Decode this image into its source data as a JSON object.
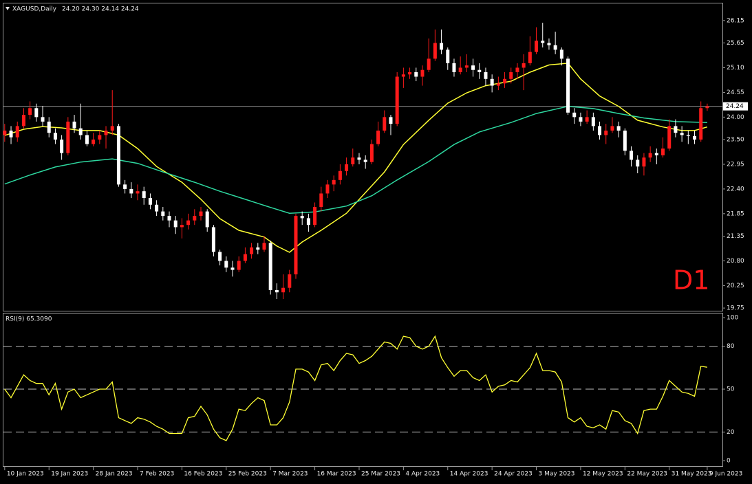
{
  "chart_data": [
    {
      "type": "candlestick",
      "title": "XAGUSD,Daily",
      "ohlc_label": "24.20 24.30 24.14 24.24",
      "up_color": "#ff1a1a",
      "down_color": "#ffffff",
      "candles": [
        [
          23.6,
          23.85,
          23.45,
          23.7
        ],
        [
          23.7,
          23.8,
          23.4,
          23.55
        ],
        [
          23.55,
          23.9,
          23.45,
          23.8
        ],
        [
          23.8,
          24.2,
          23.75,
          24.05
        ],
        [
          24.05,
          24.35,
          23.95,
          24.2
        ],
        [
          24.2,
          24.3,
          23.9,
          24.0
        ],
        [
          24.0,
          24.25,
          23.8,
          23.9
        ],
        [
          23.9,
          24.0,
          23.55,
          23.65
        ],
        [
          23.65,
          23.75,
          23.4,
          23.5
        ],
        [
          23.5,
          23.6,
          23.05,
          23.2
        ],
        [
          23.2,
          24.0,
          23.15,
          23.9
        ],
        [
          23.9,
          24.05,
          23.65,
          23.75
        ],
        [
          23.75,
          24.3,
          23.5,
          23.6
        ],
        [
          23.6,
          23.7,
          23.35,
          23.4
        ],
        [
          23.4,
          23.65,
          23.35,
          23.5
        ],
        [
          23.5,
          23.7,
          23.4,
          23.6
        ],
        [
          23.6,
          23.8,
          23.3,
          23.7
        ],
        [
          23.7,
          24.6,
          23.6,
          23.8
        ],
        [
          23.8,
          23.85,
          22.45,
          22.5
        ],
        [
          22.5,
          22.6,
          22.3,
          22.4
        ],
        [
          22.4,
          22.55,
          22.2,
          22.3
        ],
        [
          22.3,
          22.5,
          22.15,
          22.35
        ],
        [
          22.35,
          22.45,
          22.05,
          22.2
        ],
        [
          22.2,
          22.3,
          21.95,
          22.05
        ],
        [
          22.05,
          22.15,
          21.8,
          21.9
        ],
        [
          21.9,
          22.0,
          21.7,
          21.8
        ],
        [
          21.8,
          21.9,
          21.55,
          21.7
        ],
        [
          21.7,
          21.8,
          21.4,
          21.55
        ],
        [
          21.55,
          21.75,
          21.3,
          21.6
        ],
        [
          21.6,
          21.85,
          21.5,
          21.7
        ],
        [
          21.7,
          21.95,
          21.6,
          21.8
        ],
        [
          21.8,
          22.0,
          21.7,
          21.9
        ],
        [
          21.9,
          21.95,
          21.45,
          21.55
        ],
        [
          21.55,
          21.6,
          20.9,
          21.0
        ],
        [
          21.0,
          21.05,
          20.7,
          20.8
        ],
        [
          20.8,
          20.9,
          20.55,
          20.65
        ],
        [
          20.65,
          20.8,
          20.45,
          20.6
        ],
        [
          20.6,
          20.9,
          20.55,
          20.8
        ],
        [
          20.8,
          21.1,
          20.75,
          20.95
        ],
        [
          20.95,
          21.2,
          20.85,
          21.1
        ],
        [
          21.1,
          21.2,
          20.95,
          21.05
        ],
        [
          21.05,
          21.35,
          21.0,
          21.2
        ],
        [
          21.2,
          21.25,
          20.05,
          20.15
        ],
        [
          20.15,
          20.3,
          19.95,
          20.1
        ],
        [
          20.1,
          20.5,
          19.95,
          20.2
        ],
        [
          20.2,
          20.6,
          20.1,
          20.5
        ],
        [
          20.5,
          21.85,
          20.4,
          21.8
        ],
        [
          21.8,
          21.9,
          21.6,
          21.75
        ],
        [
          21.75,
          21.85,
          21.45,
          21.6
        ],
        [
          21.6,
          22.1,
          21.55,
          22.0
        ],
        [
          22.0,
          22.45,
          21.9,
          22.3
        ],
        [
          22.3,
          22.6,
          22.2,
          22.5
        ],
        [
          22.5,
          22.7,
          22.35,
          22.6
        ],
        [
          22.6,
          22.95,
          22.5,
          22.8
        ],
        [
          22.8,
          23.1,
          22.7,
          22.95
        ],
        [
          22.95,
          23.3,
          22.9,
          23.1
        ],
        [
          23.1,
          23.2,
          22.95,
          23.05
        ],
        [
          23.05,
          23.15,
          22.85,
          23.0
        ],
        [
          23.0,
          23.5,
          22.95,
          23.4
        ],
        [
          23.4,
          23.9,
          23.35,
          23.7
        ],
        [
          23.7,
          24.15,
          23.65,
          24.0
        ],
        [
          24.0,
          24.05,
          23.6,
          23.85
        ],
        [
          23.85,
          25.0,
          23.8,
          24.9
        ],
        [
          24.9,
          25.1,
          24.65,
          24.95
        ],
        [
          24.95,
          25.1,
          24.85,
          25.0
        ],
        [
          25.0,
          25.1,
          24.8,
          24.9
        ],
        [
          24.9,
          25.15,
          24.7,
          25.05
        ],
        [
          25.05,
          25.75,
          25.0,
          25.3
        ],
        [
          25.3,
          25.95,
          25.25,
          25.65
        ],
        [
          25.65,
          25.95,
          25.4,
          25.5
        ],
        [
          25.5,
          25.55,
          25.05,
          25.2
        ],
        [
          25.2,
          25.3,
          24.9,
          25.0
        ],
        [
          25.0,
          25.35,
          24.95,
          25.1
        ],
        [
          25.1,
          25.4,
          25.0,
          25.15
        ],
        [
          25.15,
          25.3,
          24.9,
          25.05
        ],
        [
          25.05,
          25.2,
          24.85,
          25.0
        ],
        [
          25.0,
          25.1,
          24.7,
          24.85
        ],
        [
          24.85,
          24.95,
          24.55,
          24.7
        ],
        [
          24.7,
          24.9,
          24.6,
          24.75
        ],
        [
          24.75,
          25.0,
          24.65,
          24.85
        ],
        [
          24.85,
          25.1,
          24.75,
          25.0
        ],
        [
          25.0,
          25.2,
          24.85,
          25.1
        ],
        [
          25.1,
          25.4,
          24.6,
          25.2
        ],
        [
          25.2,
          25.8,
          25.15,
          25.45
        ],
        [
          25.45,
          26.0,
          25.4,
          25.7
        ],
        [
          25.7,
          26.1,
          25.55,
          25.65
        ],
        [
          25.65,
          25.75,
          25.5,
          25.6
        ],
        [
          25.6,
          25.9,
          25.4,
          25.5
        ],
        [
          25.5,
          25.55,
          25.15,
          25.3
        ],
        [
          25.3,
          25.35,
          24.05,
          24.1
        ],
        [
          24.1,
          24.2,
          23.85,
          24.0
        ],
        [
          24.0,
          24.1,
          23.8,
          23.9
        ],
        [
          23.9,
          24.15,
          23.85,
          24.0
        ],
        [
          24.0,
          24.1,
          23.7,
          23.8
        ],
        [
          23.8,
          23.9,
          23.5,
          23.6
        ],
        [
          23.6,
          23.85,
          23.4,
          23.7
        ],
        [
          23.7,
          24.0,
          23.65,
          23.8
        ],
        [
          23.8,
          23.9,
          23.55,
          23.7
        ],
        [
          23.7,
          23.75,
          23.15,
          23.25
        ],
        [
          23.25,
          23.35,
          22.9,
          23.05
        ],
        [
          23.05,
          23.15,
          22.75,
          22.9
        ],
        [
          22.9,
          23.2,
          22.7,
          23.1
        ],
        [
          23.1,
          23.35,
          23.0,
          23.2
        ],
        [
          23.2,
          23.3,
          22.95,
          23.15
        ],
        [
          23.15,
          23.55,
          23.1,
          23.3
        ],
        [
          23.3,
          23.95,
          23.25,
          23.8
        ],
        [
          23.8,
          23.95,
          23.55,
          23.65
        ],
        [
          23.65,
          23.8,
          23.45,
          23.6
        ],
        [
          23.6,
          23.7,
          23.4,
          23.58
        ],
        [
          23.58,
          23.7,
          23.4,
          23.5
        ],
        [
          23.5,
          24.35,
          23.45,
          24.2
        ],
        [
          24.2,
          24.3,
          24.14,
          24.24
        ]
      ],
      "series": [
        {
          "color": "#ffff33",
          "x": [
            0,
            3,
            6,
            9,
            12,
            15,
            18,
            21,
            24,
            28,
            31,
            34,
            37,
            41,
            43,
            45,
            47,
            50,
            54,
            57,
            60,
            63,
            67,
            70,
            73,
            76,
            80,
            83,
            86,
            89,
            91,
            94,
            97,
            100,
            104,
            107,
            109,
            111
          ],
          "values": [
            23.59,
            23.73,
            23.79,
            23.76,
            23.7,
            23.7,
            23.6,
            23.3,
            22.9,
            22.55,
            22.17,
            21.74,
            21.48,
            21.33,
            21.13,
            20.99,
            21.22,
            21.48,
            21.86,
            22.32,
            22.78,
            23.39,
            23.93,
            24.31,
            24.54,
            24.7,
            24.8,
            25.0,
            25.16,
            25.2,
            24.85,
            24.47,
            24.24,
            23.93,
            23.78,
            23.7,
            23.7,
            23.78
          ]
        },
        {
          "color": "#2ed8a0",
          "x": [
            0,
            4,
            8,
            12,
            17,
            21,
            25,
            30,
            34,
            38,
            42,
            45,
            49,
            54,
            58,
            62,
            67,
            71,
            75,
            80,
            84,
            89,
            93,
            97,
            101,
            106,
            111
          ],
          "values": [
            22.51,
            22.71,
            22.89,
            23.0,
            23.07,
            22.97,
            22.78,
            22.55,
            22.35,
            22.17,
            21.99,
            21.86,
            21.89,
            22.02,
            22.25,
            22.6,
            23.01,
            23.39,
            23.67,
            23.88,
            24.08,
            24.24,
            24.19,
            24.08,
            23.98,
            23.9,
            23.88
          ]
        }
      ],
      "xlim": [
        -0.2,
        113.4
      ],
      "xticks": [
        {
          "value": 0,
          "label": "10 Jan 2023"
        },
        {
          "value": 7,
          "label": "19 Jan 2023"
        },
        {
          "value": 14,
          "label": "28 Jan 2023"
        },
        {
          "value": 21,
          "label": "7 Feb 2023"
        },
        {
          "value": 28,
          "label": "16 Feb 2023"
        },
        {
          "value": 35,
          "label": "25 Feb 2023"
        },
        {
          "value": 42,
          "label": "7 Mar 2023"
        },
        {
          "value": 49,
          "label": "16 Mar 2023"
        },
        {
          "value": 56,
          "label": "25 Mar 2023"
        },
        {
          "value": 63,
          "label": "4 Apr 2023"
        },
        {
          "value": 70,
          "label": "14 Apr 2023"
        },
        {
          "value": 77,
          "label": "24 Apr 2023"
        },
        {
          "value": 84,
          "label": "3 May 2023"
        },
        {
          "value": 91,
          "label": "12 May 2023"
        },
        {
          "value": 98,
          "label": "22 May 2023"
        },
        {
          "value": 105,
          "label": "31 May 2023"
        },
        {
          "value": 111,
          "label": "9 Jun 2023"
        }
      ],
      "ylim": [
        19.69,
        26.53
      ],
      "yticks": [
        26.15,
        25.65,
        {
          "value": 25.1,
          "label": "25.10"
        },
        24.55,
        {
          "value": 24.0,
          "label": "24.00"
        },
        {
          "value": 23.5,
          "label": "23.50"
        },
        22.95,
        {
          "value": 22.4,
          "label": "22.40"
        },
        21.85,
        21.35,
        {
          "value": 20.8,
          "label": "20.80"
        },
        20.25,
        19.75
      ],
      "last_price": 24.24,
      "annotation": "D1"
    },
    {
      "type": "line",
      "title": "RSI(9) 65.3090",
      "color": "#ffff33",
      "values": [
        50,
        44,
        52,
        60,
        56,
        54,
        54,
        46,
        54,
        36,
        48,
        50,
        44,
        46,
        48,
        50,
        50,
        55,
        30,
        28,
        26,
        30,
        29,
        27,
        24,
        22,
        19,
        19,
        19,
        30,
        31,
        38,
        32,
        22,
        16,
        14,
        22,
        36,
        35,
        40,
        44,
        42,
        25,
        25,
        30,
        41,
        64,
        64,
        62,
        56,
        67,
        68,
        63,
        70,
        75,
        74,
        68,
        70,
        73,
        78,
        83,
        82,
        78,
        87,
        86,
        80,
        78,
        80,
        87,
        72,
        65,
        59,
        63,
        63,
        58,
        56,
        60,
        48,
        52,
        53,
        56,
        55,
        60,
        65,
        75,
        63,
        63,
        62,
        55,
        30,
        27,
        30,
        24,
        23,
        25,
        22,
        35,
        34,
        28,
        26,
        19,
        35,
        36,
        36,
        45,
        56,
        52,
        48,
        47,
        45,
        66,
        65.309
      ],
      "xlim": [
        -0.2,
        113.4
      ],
      "ylim": [
        -3.85,
        102.9
      ],
      "yticks": [
        100,
        80,
        50,
        20,
        0
      ],
      "levels": [
        80,
        50,
        20
      ]
    }
  ]
}
